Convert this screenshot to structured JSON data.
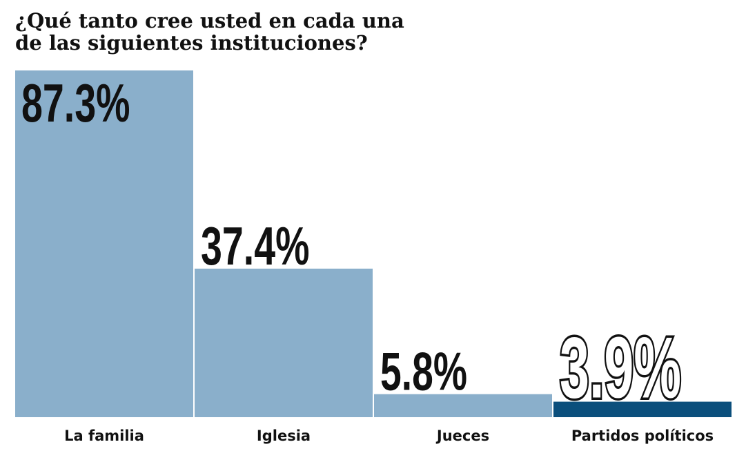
{
  "chart_data": {
    "type": "bar",
    "title": "¿Qué tanto cree usted en cada una de las siguientes instituciones?",
    "categories": [
      "La familia",
      "Iglesia",
      "Jueces",
      "Partidos políticos"
    ],
    "values": [
      87.3,
      37.4,
      5.8,
      3.9
    ],
    "value_labels": [
      "87.3%",
      "37.4%",
      "5.8%",
      "3.9%"
    ],
    "colors": [
      "#8aafcb",
      "#8aafcb",
      "#8aafcb",
      "#0b4f7c"
    ]
  }
}
